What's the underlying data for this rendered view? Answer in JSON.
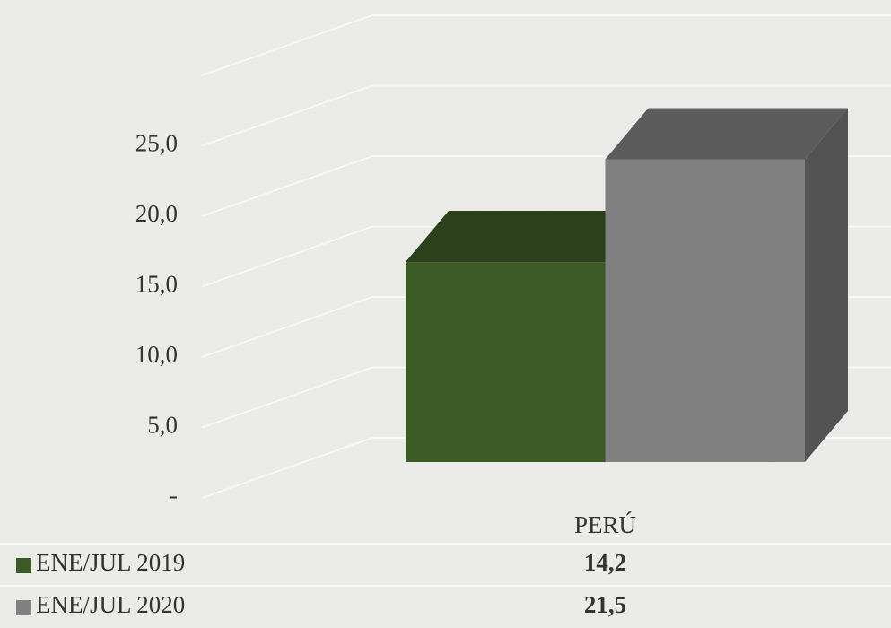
{
  "chart_data": {
    "type": "bar3d",
    "categories": [
      "PERÚ"
    ],
    "series": [
      {
        "name": "ENE/JUL 2019",
        "color": "#3b5a25",
        "values": [
          14.2
        ],
        "value_labels": [
          "14,2"
        ]
      },
      {
        "name": "ENE/JUL 2020",
        "color": "#7f807f",
        "values": [
          21.5
        ],
        "value_labels": [
          "21,5"
        ]
      }
    ],
    "ylim": [
      0,
      30
    ],
    "yticks": [
      {
        "value": 0,
        "label": "-"
      },
      {
        "value": 5,
        "label": "5,0"
      },
      {
        "value": 10,
        "label": "10,0"
      },
      {
        "value": 15,
        "label": "15,0"
      },
      {
        "value": 20,
        "label": "20,0"
      },
      {
        "value": 25,
        "label": "25,0"
      }
    ],
    "grid": true
  }
}
